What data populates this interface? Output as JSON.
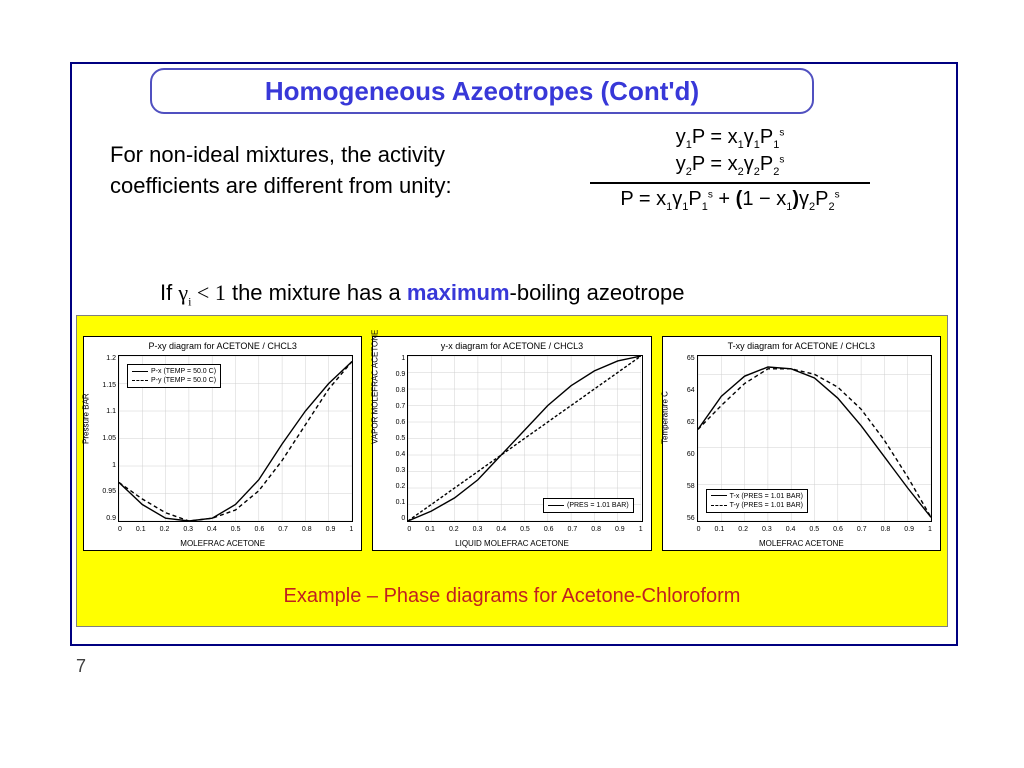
{
  "page_number": "7",
  "title": "Homogeneous Azeotropes (Cont'd)",
  "intro_text": "For non-ideal mixtures, the activity coefficients are different from unity:",
  "if_prefix": "If ",
  "if_cond": "γᵢ < 1",
  "if_mid": " the mixture has a ",
  "if_kw": "maximum",
  "if_suffix": "-boiling azeotrope",
  "example_caption": "Example – Phase diagrams for Acetone-Chloroform",
  "colors": {
    "title_text": "#3838d8",
    "title_border": "#5050c0",
    "frame_border": "#000080",
    "highlight_bg": "#ffff00",
    "caption": "#c02020",
    "grid": "#d0d0d0",
    "curve": "#000000"
  },
  "charts": [
    {
      "type": "line",
      "title": "P-xy diagram for ACETONE / CHCL3",
      "xlabel": "MOLEFRAC ACETONE",
      "ylabel": "Pressure BAR",
      "xlim": [
        0,
        1
      ],
      "ylim": [
        0.9,
        1.2
      ],
      "xticks": [
        0,
        0.1,
        0.2,
        0.3,
        0.4,
        0.5,
        0.6,
        0.7,
        0.8,
        0.9,
        1
      ],
      "yticks": [
        0.9,
        0.95,
        1,
        1.05,
        1.1,
        1.15,
        1.2
      ],
      "legend_pos": "top-left",
      "series": [
        {
          "name": "P-x (TEMP = 50.0 C)",
          "dash": "none",
          "x": [
            0,
            0.1,
            0.2,
            0.3,
            0.4,
            0.5,
            0.6,
            0.7,
            0.8,
            0.9,
            1
          ],
          "y": [
            0.97,
            0.93,
            0.905,
            0.9,
            0.905,
            0.93,
            0.975,
            1.04,
            1.1,
            1.15,
            1.19
          ]
        },
        {
          "name": "P-y (TEMP = 50.0 C)",
          "dash": "4,3",
          "x": [
            0,
            0.1,
            0.2,
            0.3,
            0.4,
            0.5,
            0.6,
            0.7,
            0.8,
            0.9,
            1
          ],
          "y": [
            0.97,
            0.94,
            0.915,
            0.9,
            0.905,
            0.92,
            0.955,
            1.01,
            1.075,
            1.14,
            1.19
          ]
        }
      ]
    },
    {
      "type": "line",
      "title": "y-x diagram for ACETONE / CHCL3",
      "xlabel": "LIQUID MOLEFRAC ACETONE",
      "ylabel": "VAPOR MOLEFRAC ACETONE",
      "xlim": [
        0,
        1
      ],
      "ylim": [
        0,
        1
      ],
      "xticks": [
        0,
        0.1,
        0.2,
        0.3,
        0.4,
        0.5,
        0.6,
        0.7,
        0.8,
        0.9,
        1
      ],
      "yticks": [
        0,
        0.1,
        0.2,
        0.3,
        0.4,
        0.5,
        0.6,
        0.7,
        0.8,
        0.9,
        1
      ],
      "legend_pos": "bottom-right",
      "series": [
        {
          "name": "(PRES = 1.01 BAR)",
          "dash": "none",
          "x": [
            0,
            0.1,
            0.2,
            0.3,
            0.4,
            0.5,
            0.6,
            0.7,
            0.8,
            0.9,
            1
          ],
          "y": [
            0,
            0.06,
            0.14,
            0.25,
            0.4,
            0.55,
            0.7,
            0.82,
            0.91,
            0.97,
            1
          ]
        },
        {
          "name": "diag",
          "dash": "3,2",
          "hide_legend": true,
          "x": [
            0,
            1
          ],
          "y": [
            0,
            1
          ]
        }
      ]
    },
    {
      "type": "line",
      "title": "T-xy diagram for ACETONE / CHCL3",
      "xlabel": "MOLEFRAC ACETONE",
      "ylabel": "Temperature C",
      "xlim": [
        0,
        1
      ],
      "ylim": [
        56,
        65
      ],
      "xticks": [
        0,
        0.1,
        0.2,
        0.3,
        0.4,
        0.5,
        0.6,
        0.7,
        0.8,
        0.9,
        1
      ],
      "yticks": [
        56,
        58,
        60,
        62,
        64,
        65
      ],
      "legend_pos": "bottom-left",
      "series": [
        {
          "name": "T-x (PRES = 1.01 BAR)",
          "dash": "none",
          "x": [
            0,
            0.1,
            0.2,
            0.3,
            0.4,
            0.5,
            0.6,
            0.7,
            0.8,
            0.9,
            1
          ],
          "y": [
            61,
            62.8,
            63.9,
            64.4,
            64.3,
            63.8,
            62.7,
            61.2,
            59.5,
            57.8,
            56.2
          ]
        },
        {
          "name": "T-y (PRES = 1.01 BAR)",
          "dash": "4,3",
          "x": [
            0,
            0.1,
            0.2,
            0.3,
            0.4,
            0.5,
            0.6,
            0.7,
            0.8,
            0.9,
            1
          ],
          "y": [
            61,
            62.3,
            63.5,
            64.3,
            64.3,
            64,
            63.3,
            62.1,
            60.4,
            58.4,
            56.2
          ]
        }
      ]
    }
  ]
}
